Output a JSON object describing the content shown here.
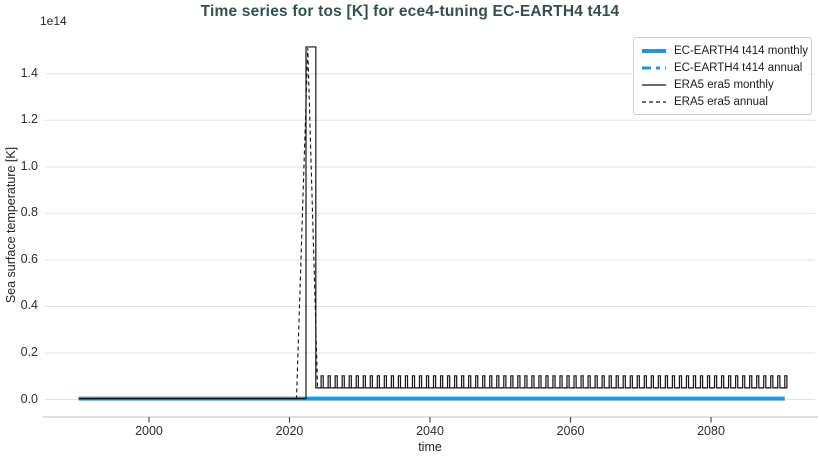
{
  "chart_data": {
    "type": "line",
    "title": "Time series for tos [K] for ece4-tuning EC-EARTH4 t414",
    "xlabel": "time",
    "ylabel": "Sea surface temperature [K]",
    "offset_text": "1e14",
    "xlim": [
      1985.2,
      2094.8
    ],
    "ylim": [
      -0.075,
      1.575
    ],
    "xticks": [
      2000,
      2020,
      2040,
      2060,
      2080
    ],
    "yticks": [
      0.0,
      0.2,
      0.4,
      0.6,
      0.8,
      1.0,
      1.2,
      1.4
    ],
    "grid": "horizontal-only",
    "legend_position": "upper right",
    "series": [
      {
        "name": "EC-EARTH4 t414 monthly",
        "color": "#1e97e0",
        "width": 4,
        "dash": null,
        "points": [
          [
            1990.0,
            0.004
          ],
          [
            2090.5,
            0.004
          ]
        ]
      },
      {
        "name": "EC-EARTH4 t414 annual",
        "color": "#1e97e0",
        "width": 3,
        "dash": "9 5 4 5",
        "points": [
          [
            1990.5,
            0.004
          ],
          [
            2090.0,
            0.004
          ]
        ]
      },
      {
        "name": "ERA5 era5 monthly",
        "color": "#151515",
        "width": 1.2,
        "dash": null,
        "points": [
          [
            1990.0,
            0.004
          ],
          [
            2022.35,
            0.004
          ],
          [
            2022.35,
            1.515
          ],
          [
            2023.75,
            1.515
          ],
          [
            2023.75,
            0.05
          ]
        ],
        "pulses": {
          "start": 2024.0,
          "end": 2090.5,
          "period": 1.0,
          "low": 0.05,
          "high": 0.102,
          "base_frac": 0.5,
          "top_frac": 0.3
        }
      },
      {
        "name": "ERA5 era5 annual",
        "color": "#151515",
        "width": 1.1,
        "dash": "4 3",
        "points": [
          [
            1990.0,
            0.004
          ],
          [
            2021.0,
            0.004
          ],
          [
            2022.6,
            1.51
          ],
          [
            2024.0,
            0.05
          ],
          [
            2090.5,
            0.05
          ]
        ]
      }
    ]
  },
  "colors": {
    "title": "#31514f",
    "tick_label": "#2e2e2e",
    "grid": "#e3e3e3",
    "spine": "#cccccc",
    "tick_mark": "#4a4a4a",
    "ec_earth_blue": "#1e97e0",
    "era5_black": "#151515",
    "legend_border": "#cfcfcf"
  }
}
